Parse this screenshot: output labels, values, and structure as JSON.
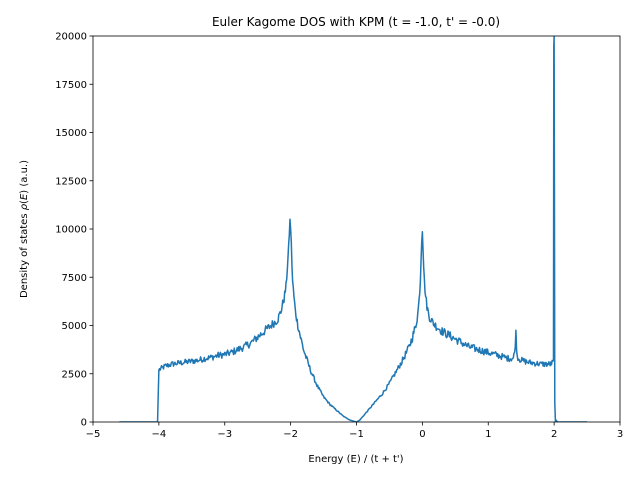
{
  "chart_data": {
    "type": "line",
    "title": "Euler Kagome DOS with KPM (t = -1.0, t' = -0.0)",
    "xlabel": "Energy (E) / (t + t')",
    "ylabel_prefix": "Density of states ",
    "ylabel_rho": "ρ",
    "ylabel_paren_open": "(",
    "ylabel_E": "E",
    "ylabel_suffix": ") (a.u.)",
    "xlim": [
      -5,
      3
    ],
    "ylim": [
      0,
      20000
    ],
    "x_ticks": [
      -5,
      -4,
      -3,
      -2,
      -1,
      0,
      1,
      2,
      3
    ],
    "x_tick_labels": [
      "−5",
      "−4",
      "−3",
      "−2",
      "−1",
      "0",
      "1",
      "2",
      "3"
    ],
    "y_ticks": [
      0,
      2500,
      5000,
      7500,
      10000,
      12500,
      15000,
      17500,
      20000
    ],
    "y_tick_labels": [
      "0",
      "2500",
      "5000",
      "7500",
      "10000",
      "12500",
      "15000",
      "17500",
      "20000"
    ],
    "grid": false,
    "legend": "none",
    "line_color": "#1f77b4",
    "series": [
      {
        "x": [
          -4.6,
          -4.03,
          -4.02,
          -4.01,
          -4.0,
          -3.95,
          -3.9,
          -3.8,
          -3.7,
          -3.6,
          -3.5,
          -3.4,
          -3.3,
          -3.2,
          -3.1,
          -3.0,
          -2.9,
          -2.8,
          -2.7,
          -2.6,
          -2.5,
          -2.4,
          -2.3,
          -2.2,
          -2.15,
          -2.1,
          -2.07,
          -2.05,
          -2.03,
          -2.02,
          -2.01,
          -2.0,
          -1.99,
          -1.98,
          -1.97,
          -1.95,
          -1.93,
          -1.9,
          -1.85,
          -1.8,
          -1.7,
          -1.6,
          -1.5,
          -1.4,
          -1.3,
          -1.2,
          -1.1,
          -1.05,
          -1.0,
          -0.95,
          -0.9,
          -0.8,
          -0.7,
          -0.6,
          -0.5,
          -0.4,
          -0.3,
          -0.2,
          -0.15,
          -0.1,
          -0.07,
          -0.05,
          -0.03,
          -0.02,
          -0.01,
          0.0,
          0.01,
          0.02,
          0.03,
          0.05,
          0.07,
          0.1,
          0.15,
          0.2,
          0.3,
          0.4,
          0.5,
          0.6,
          0.7,
          0.8,
          0.9,
          1.0,
          1.1,
          1.2,
          1.3,
          1.38,
          1.4,
          1.42,
          1.43,
          1.44,
          1.46,
          1.5,
          1.6,
          1.7,
          1.8,
          1.9,
          1.95,
          1.98,
          1.99,
          1.995,
          2.0,
          2.005,
          2.01,
          2.02,
          2.03,
          2.05,
          2.07,
          2.1,
          2.5
        ],
        "y": [
          0,
          0,
          0,
          1400,
          2700,
          2800,
          2900,
          3000,
          3050,
          3100,
          3150,
          3200,
          3300,
          3350,
          3450,
          3500,
          3600,
          3750,
          3900,
          4100,
          4400,
          4700,
          5000,
          5300,
          5700,
          6400,
          7000,
          8000,
          9000,
          9800,
          10400,
          10100,
          9200,
          8200,
          7300,
          6500,
          5800,
          5200,
          4400,
          3700,
          2700,
          1900,
          1300,
          900,
          600,
          300,
          100,
          50,
          0,
          100,
          300,
          700,
          1100,
          1500,
          2000,
          2600,
          3200,
          3900,
          4400,
          5000,
          5600,
          6300,
          7400,
          8500,
          9500,
          10000,
          9100,
          8100,
          7300,
          6500,
          6000,
          5500,
          5200,
          5000,
          4700,
          4500,
          4300,
          4100,
          3900,
          3800,
          3700,
          3600,
          3500,
          3400,
          3300,
          3300,
          3600,
          4600,
          3900,
          3400,
          3300,
          3200,
          3100,
          3050,
          3000,
          3000,
          3000,
          3100,
          3200,
          19500,
          20000,
          12000,
          1000,
          0,
          100,
          0,
          0,
          0,
          0
        ]
      }
    ]
  }
}
